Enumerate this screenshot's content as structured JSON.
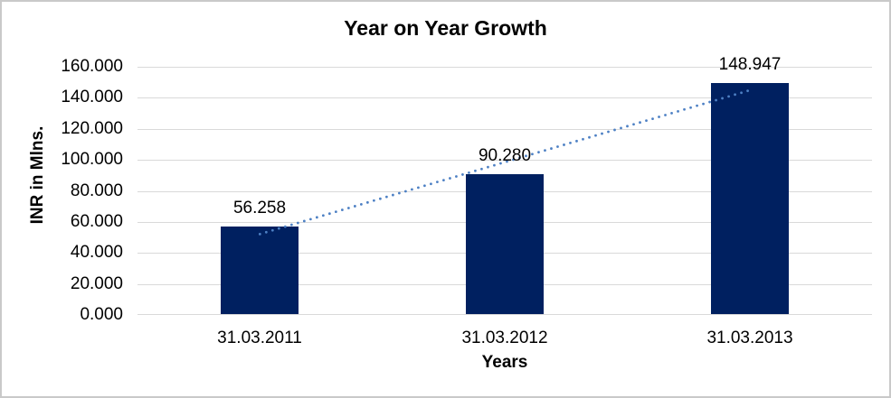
{
  "chart_data": {
    "type": "bar",
    "title": "Year on Year Growth",
    "categories": [
      "31.03.2011",
      "31.03.2012",
      "31.03.2013"
    ],
    "values": [
      56.258,
      90.28,
      148.947
    ],
    "data_labels": [
      "56.258",
      "90.280",
      "148.947"
    ],
    "xlabel": "Years",
    "ylabel": "INR in Mlns.",
    "ylim": [
      0,
      160
    ],
    "ytick_step": 20,
    "ytick_labels": [
      "0.000",
      "20.000",
      "40.000",
      "60.000",
      "80.000",
      "100.000",
      "120.000",
      "140.000",
      "160.000"
    ],
    "grid": true,
    "legend": "none",
    "trendline": {
      "type": "linear",
      "style": "dotted"
    },
    "colors": {
      "bar": "#002060",
      "trendline": "#4d80c4",
      "gridline": "#d9d9d9",
      "axis_line": "#d9d9d9",
      "text": "#000000",
      "background": "#ffffff",
      "frame_border": "#c9c9c9"
    }
  }
}
